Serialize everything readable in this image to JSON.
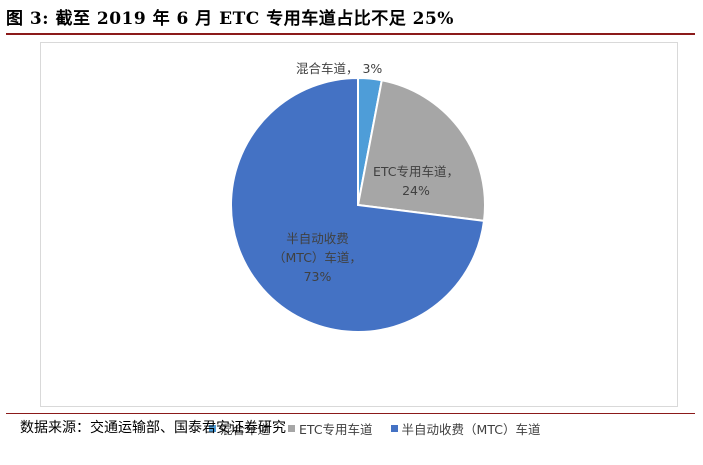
{
  "figure": {
    "title": "图 3: 截至 2019 年 6 月 ETC 专用车道占比不足 25%",
    "source": "数据来源：交通运输部、国泰君安证券研究"
  },
  "chart_data": {
    "type": "pie",
    "slices": [
      {
        "name": "混合车道",
        "value": 3,
        "color": "#4e9dd8",
        "label_lines": [
          "混合车道， 3%"
        ],
        "label_color": "#404040"
      },
      {
        "name": "ETC专用车道",
        "value": 24,
        "color": "#a6a6a6",
        "label_lines": [
          "ETC专用车道，",
          "24%"
        ],
        "label_color": "#404040"
      },
      {
        "name": "半自动收费（MTC）车道",
        "value": 73,
        "color": "#4472c4",
        "label_lines": [
          "半自动收费",
          "（MTC）车道，",
          "73%"
        ],
        "label_color": "#404040"
      }
    ],
    "legend_placement": "bottom",
    "legend": [
      "混合车道",
      "ETC专用车道",
      "半自动收费（MTC）车道"
    ]
  }
}
